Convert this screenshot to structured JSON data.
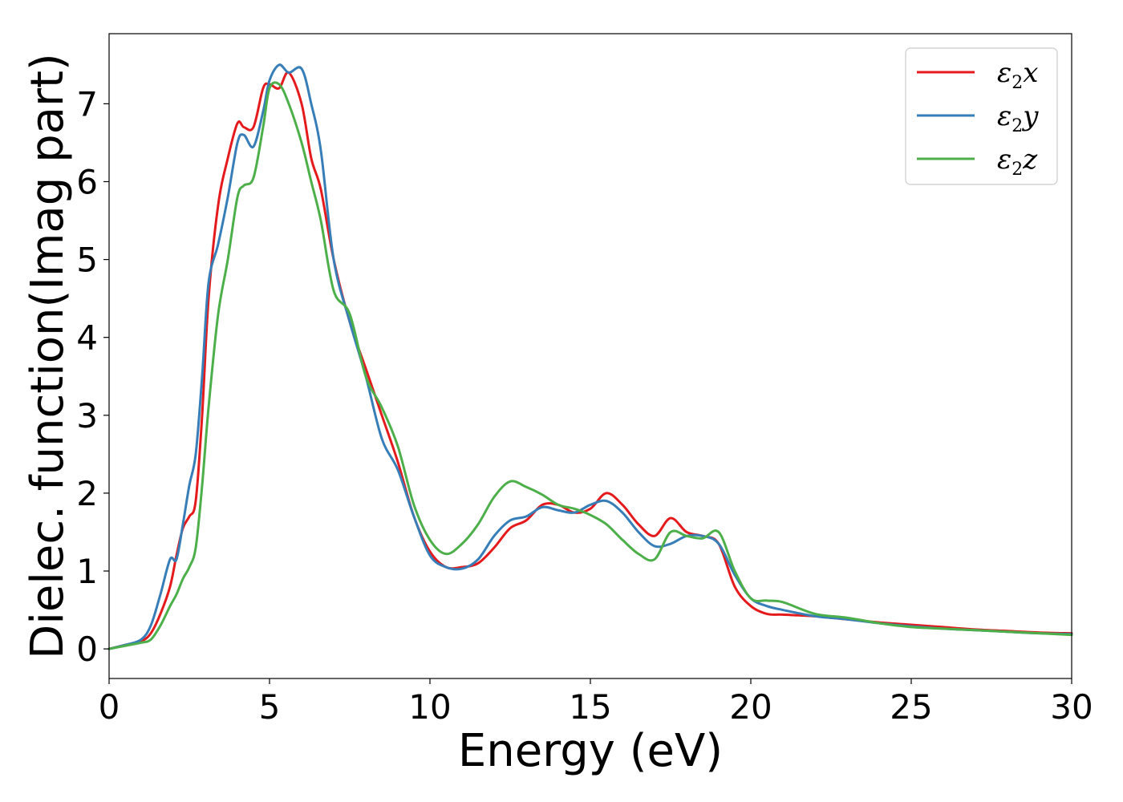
{
  "chart_data": {
    "type": "line",
    "xlabel": "Energy (eV)",
    "ylabel": "Dielec. function(Imag part)",
    "xlim": [
      0,
      30
    ],
    "ylim": [
      -0.38,
      7.9
    ],
    "xticks": [
      0,
      5,
      10,
      15,
      20,
      25,
      30
    ],
    "yticks": [
      0,
      1,
      2,
      3,
      4,
      5,
      6,
      7
    ],
    "xtick_labels": [
      "0",
      "5",
      "10",
      "15",
      "20",
      "25",
      "30"
    ],
    "ytick_labels": [
      "0",
      "1",
      "2",
      "3",
      "4",
      "5",
      "6",
      "7"
    ],
    "grid": false,
    "legend_position": "top-right",
    "series": [
      {
        "name": "ε2x",
        "legend_base": "ε",
        "legend_sub": "2",
        "legend_var": "x",
        "color": "#e41a1c",
        "x": [
          0,
          0.5,
          1.0,
          1.3,
          1.6,
          1.9,
          2.1,
          2.3,
          2.5,
          2.7,
          2.9,
          3.1,
          3.4,
          3.7,
          4.0,
          4.2,
          4.5,
          4.8,
          5.0,
          5.3,
          5.6,
          6.0,
          6.3,
          6.6,
          7.0,
          7.5,
          8.0,
          8.5,
          9.0,
          9.5,
          10.0,
          10.5,
          11.0,
          11.5,
          12.0,
          12.5,
          13.0,
          13.5,
          14.0,
          14.5,
          15.0,
          15.5,
          16.0,
          16.5,
          17.0,
          17.5,
          18.0,
          18.5,
          19.0,
          19.5,
          20.0,
          20.5,
          21.0,
          22.0,
          23.0,
          24.0,
          25.0,
          26.0,
          27.0,
          28.0,
          29.0,
          30.0
        ],
        "y": [
          0.0,
          0.05,
          0.1,
          0.2,
          0.45,
          0.8,
          1.2,
          1.55,
          1.7,
          1.9,
          3.0,
          4.5,
          5.7,
          6.3,
          6.75,
          6.7,
          6.7,
          7.2,
          7.25,
          7.2,
          7.4,
          7.0,
          6.3,
          5.9,
          5.0,
          4.2,
          3.6,
          3.0,
          2.4,
          1.7,
          1.25,
          1.05,
          1.05,
          1.1,
          1.3,
          1.55,
          1.65,
          1.85,
          1.85,
          1.75,
          1.8,
          2.0,
          1.85,
          1.6,
          1.45,
          1.68,
          1.5,
          1.45,
          1.35,
          0.8,
          0.55,
          0.45,
          0.44,
          0.42,
          0.38,
          0.34,
          0.31,
          0.28,
          0.25,
          0.23,
          0.21,
          0.2
        ]
      },
      {
        "name": "ε2y",
        "legend_base": "ε",
        "legend_sub": "2",
        "legend_var": "y",
        "color": "#377eb8",
        "x": [
          0,
          0.5,
          1.0,
          1.3,
          1.6,
          1.9,
          2.1,
          2.3,
          2.5,
          2.7,
          2.9,
          3.1,
          3.4,
          3.7,
          4.0,
          4.2,
          4.5,
          4.8,
          5.0,
          5.3,
          5.6,
          6.0,
          6.3,
          6.6,
          7.0,
          7.5,
          8.0,
          8.5,
          9.0,
          9.5,
          10.0,
          10.5,
          11.0,
          11.5,
          12.0,
          12.5,
          13.0,
          13.5,
          14.0,
          14.5,
          15.0,
          15.5,
          16.0,
          16.5,
          17.0,
          17.5,
          18.0,
          18.5,
          19.0,
          19.5,
          20.0,
          20.5,
          21.0,
          22.0,
          23.0,
          24.0,
          25.0,
          26.0,
          27.0,
          28.0,
          29.0,
          30.0
        ],
        "y": [
          0.0,
          0.05,
          0.12,
          0.3,
          0.7,
          1.15,
          1.15,
          1.6,
          2.1,
          2.5,
          3.5,
          4.7,
          5.2,
          5.8,
          6.5,
          6.6,
          6.45,
          6.9,
          7.3,
          7.5,
          7.4,
          7.45,
          7.0,
          6.4,
          5.0,
          4.2,
          3.5,
          2.7,
          2.3,
          1.7,
          1.2,
          1.05,
          1.03,
          1.15,
          1.45,
          1.65,
          1.7,
          1.82,
          1.78,
          1.75,
          1.85,
          1.9,
          1.75,
          1.5,
          1.32,
          1.35,
          1.45,
          1.45,
          1.35,
          0.95,
          0.65,
          0.55,
          0.5,
          0.42,
          0.38,
          0.33,
          0.29,
          0.26,
          0.24,
          0.22,
          0.2,
          0.19
        ]
      },
      {
        "name": "ε2z",
        "legend_base": "ε",
        "legend_sub": "2",
        "legend_var": "z",
        "color": "#4daf4a",
        "x": [
          0,
          0.5,
          1.0,
          1.3,
          1.6,
          1.9,
          2.1,
          2.3,
          2.5,
          2.7,
          2.9,
          3.1,
          3.4,
          3.7,
          4.0,
          4.2,
          4.5,
          4.8,
          5.0,
          5.3,
          5.6,
          6.0,
          6.3,
          6.6,
          7.0,
          7.5,
          8.0,
          8.5,
          9.0,
          9.5,
          10.0,
          10.5,
          11.0,
          11.5,
          12.0,
          12.5,
          13.0,
          13.5,
          14.0,
          14.5,
          15.0,
          15.5,
          16.0,
          16.5,
          17.0,
          17.5,
          18.0,
          18.5,
          19.0,
          19.5,
          20.0,
          20.5,
          21.0,
          22.0,
          23.0,
          24.0,
          25.0,
          26.0,
          27.0,
          28.0,
          29.0,
          30.0
        ],
        "y": [
          0.0,
          0.04,
          0.08,
          0.12,
          0.3,
          0.55,
          0.7,
          0.9,
          1.05,
          1.3,
          2.1,
          3.1,
          4.3,
          5.0,
          5.8,
          5.95,
          6.05,
          6.7,
          7.2,
          7.25,
          7.0,
          6.5,
          6.0,
          5.5,
          4.6,
          4.3,
          3.5,
          3.1,
          2.6,
          1.85,
          1.4,
          1.22,
          1.35,
          1.6,
          1.95,
          2.15,
          2.08,
          1.98,
          1.85,
          1.8,
          1.72,
          1.6,
          1.4,
          1.22,
          1.15,
          1.5,
          1.45,
          1.42,
          1.5,
          1.0,
          0.65,
          0.62,
          0.6,
          0.45,
          0.4,
          0.33,
          0.28,
          0.26,
          0.24,
          0.22,
          0.2,
          0.18
        ]
      }
    ]
  }
}
